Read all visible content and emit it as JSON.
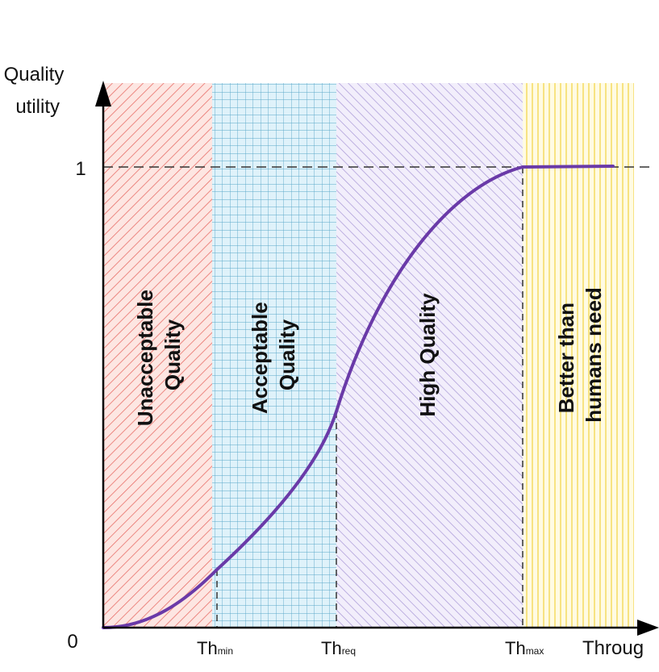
{
  "chart_data": {
    "type": "line",
    "ylabel_lines": [
      "Quality",
      "utility"
    ],
    "xlabel": "Throug",
    "y_ticks": [
      {
        "label": "0",
        "value": 0
      },
      {
        "label": "1",
        "value": 1
      }
    ],
    "x_markers": [
      {
        "main": "Th",
        "sub": "min"
      },
      {
        "main": "Th",
        "sub": "req"
      },
      {
        "main": "Th",
        "sub": "max"
      }
    ],
    "zones": [
      {
        "lines": [
          "Unacceptable",
          "Quality"
        ],
        "color": "#e8706a",
        "bg": "#fde6e2",
        "pattern": "diagonal"
      },
      {
        "lines": [
          "Acceptable",
          "Quality"
        ],
        "color": "#5aa8c8",
        "bg": "#dff2fa",
        "pattern": "grid"
      },
      {
        "lines": [
          "High Quality"
        ],
        "color": "#a796d6",
        "bg": "#f2eefb",
        "pattern": "diagonal"
      },
      {
        "lines": [
          "Better than",
          "humans need"
        ],
        "color": "#f5dd6a",
        "bg": "#fffbe3",
        "pattern": "vertical"
      }
    ],
    "curve_color": "#6a3aa8"
  }
}
